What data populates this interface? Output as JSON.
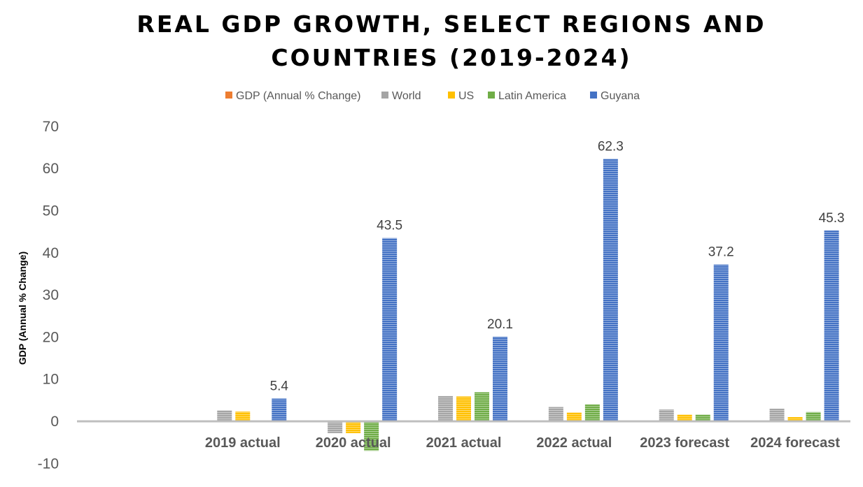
{
  "chart_data": {
    "type": "bar",
    "title_lines": [
      "REAL GDP GROWTH, SELECT REGIONS AND",
      "COUNTRIES (2019-2024)"
    ],
    "xlabel": "",
    "ylabel": "GDP (Annual % Change)",
    "ylim": [
      -10,
      70
    ],
    "yticks": [
      -10,
      0,
      10,
      20,
      30,
      40,
      50,
      60,
      70
    ],
    "grid": false,
    "legend_position": "top",
    "categories": [
      "",
      "2019 actual",
      "2020 actual",
      "2021 actual",
      "2022 actual",
      "2023 forecast",
      "2024 forecast"
    ],
    "series": [
      {
        "name": "GDP (Annual % Change)",
        "color": "#ED7D31",
        "values": [
          null,
          null,
          null,
          null,
          null,
          null,
          null
        ]
      },
      {
        "name": "World",
        "color": "#A5A5A5",
        "values": [
          null,
          2.6,
          -2.8,
          6.0,
          3.4,
          2.8,
          3.0
        ]
      },
      {
        "name": "US",
        "color": "#FFC000",
        "values": [
          null,
          2.3,
          -2.8,
          5.9,
          2.1,
          1.6,
          1.0
        ]
      },
      {
        "name": "Latin America",
        "color": "#70AD47",
        "values": [
          null,
          0.1,
          -7.0,
          6.9,
          4.0,
          1.6,
          2.2
        ]
      },
      {
        "name": "Guyana",
        "color": "#4472C4",
        "values": [
          null,
          5.4,
          43.5,
          20.1,
          62.3,
          37.2,
          45.3
        ]
      }
    ],
    "data_labels": {
      "series": "Guyana",
      "values": [
        "",
        "5.4",
        "43.5",
        "20.1",
        "62.3",
        "37.2",
        "45.3"
      ]
    }
  }
}
